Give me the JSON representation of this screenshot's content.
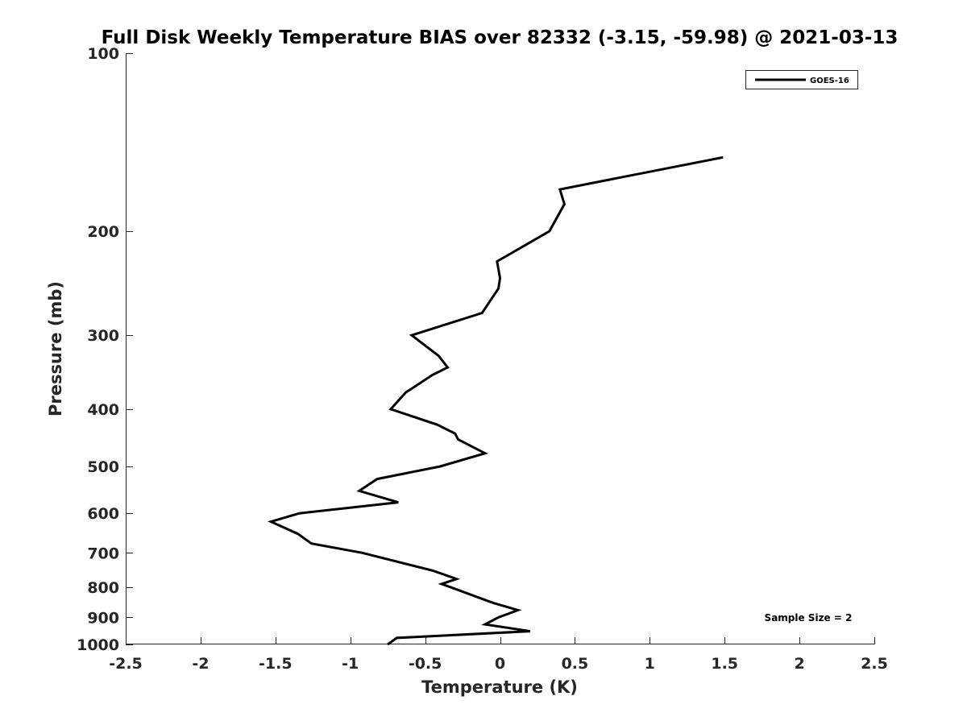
{
  "chart_data": {
    "type": "line",
    "title": "Full Disk Weekly Temperature BIAS over 82332 (-3.15, -59.98) @ 2021-03-13",
    "xlabel": "Temperature (K)",
    "ylabel": "Pressure (mb)",
    "xlim": [
      -2.5,
      2.5
    ],
    "ylim": [
      100,
      1000
    ],
    "yscale": "log",
    "y_reversed": true,
    "grid": false,
    "legend_position": "top-right",
    "x_ticks": [
      "-2.5",
      "-2",
      "-1.5",
      "-1",
      "-0.5",
      "0",
      "0.5",
      "1",
      "1.5",
      "2",
      "2.5"
    ],
    "x_tick_values": [
      -2.5,
      -2,
      -1.5,
      -1,
      -0.5,
      0,
      0.5,
      1,
      1.5,
      2,
      2.5
    ],
    "y_ticks": [
      "100",
      "200",
      "300",
      "400",
      "500",
      "600",
      "700",
      "800",
      "900",
      "1000"
    ],
    "y_tick_values": [
      100,
      200,
      300,
      400,
      500,
      600,
      700,
      800,
      900,
      1000
    ],
    "annotation": "Sample Size = 2",
    "series": [
      {
        "name": "GOES-16",
        "color": "#000000",
        "points": [
          {
            "x": 1.49,
            "p": 150
          },
          {
            "x": 0.4,
            "p": 170
          },
          {
            "x": 0.43,
            "p": 180
          },
          {
            "x": 0.33,
            "p": 200
          },
          {
            "x": -0.02,
            "p": 225
          },
          {
            "x": 0.0,
            "p": 240
          },
          {
            "x": -0.01,
            "p": 250
          },
          {
            "x": -0.12,
            "p": 275
          },
          {
            "x": -0.59,
            "p": 300
          },
          {
            "x": -0.41,
            "p": 325
          },
          {
            "x": -0.35,
            "p": 340
          },
          {
            "x": -0.45,
            "p": 350
          },
          {
            "x": -0.63,
            "p": 375
          },
          {
            "x": -0.73,
            "p": 400
          },
          {
            "x": -0.42,
            "p": 425
          },
          {
            "x": -0.3,
            "p": 440
          },
          {
            "x": -0.28,
            "p": 450
          },
          {
            "x": -0.1,
            "p": 475
          },
          {
            "x": -0.4,
            "p": 500
          },
          {
            "x": -0.82,
            "p": 525
          },
          {
            "x": -0.94,
            "p": 550
          },
          {
            "x": -0.68,
            "p": 575
          },
          {
            "x": -1.34,
            "p": 600
          },
          {
            "x": -1.53,
            "p": 620
          },
          {
            "x": -1.35,
            "p": 650
          },
          {
            "x": -1.26,
            "p": 675
          },
          {
            "x": -0.92,
            "p": 700
          },
          {
            "x": -0.45,
            "p": 750
          },
          {
            "x": -0.29,
            "p": 775
          },
          {
            "x": -0.39,
            "p": 790
          },
          {
            "x": -0.33,
            "p": 800
          },
          {
            "x": -0.05,
            "p": 850
          },
          {
            "x": 0.12,
            "p": 875
          },
          {
            "x": -0.01,
            "p": 900
          },
          {
            "x": -0.1,
            "p": 925
          },
          {
            "x": 0.2,
            "p": 950
          },
          {
            "x": -0.69,
            "p": 975
          },
          {
            "x": -0.75,
            "p": 1000
          }
        ]
      }
    ]
  }
}
